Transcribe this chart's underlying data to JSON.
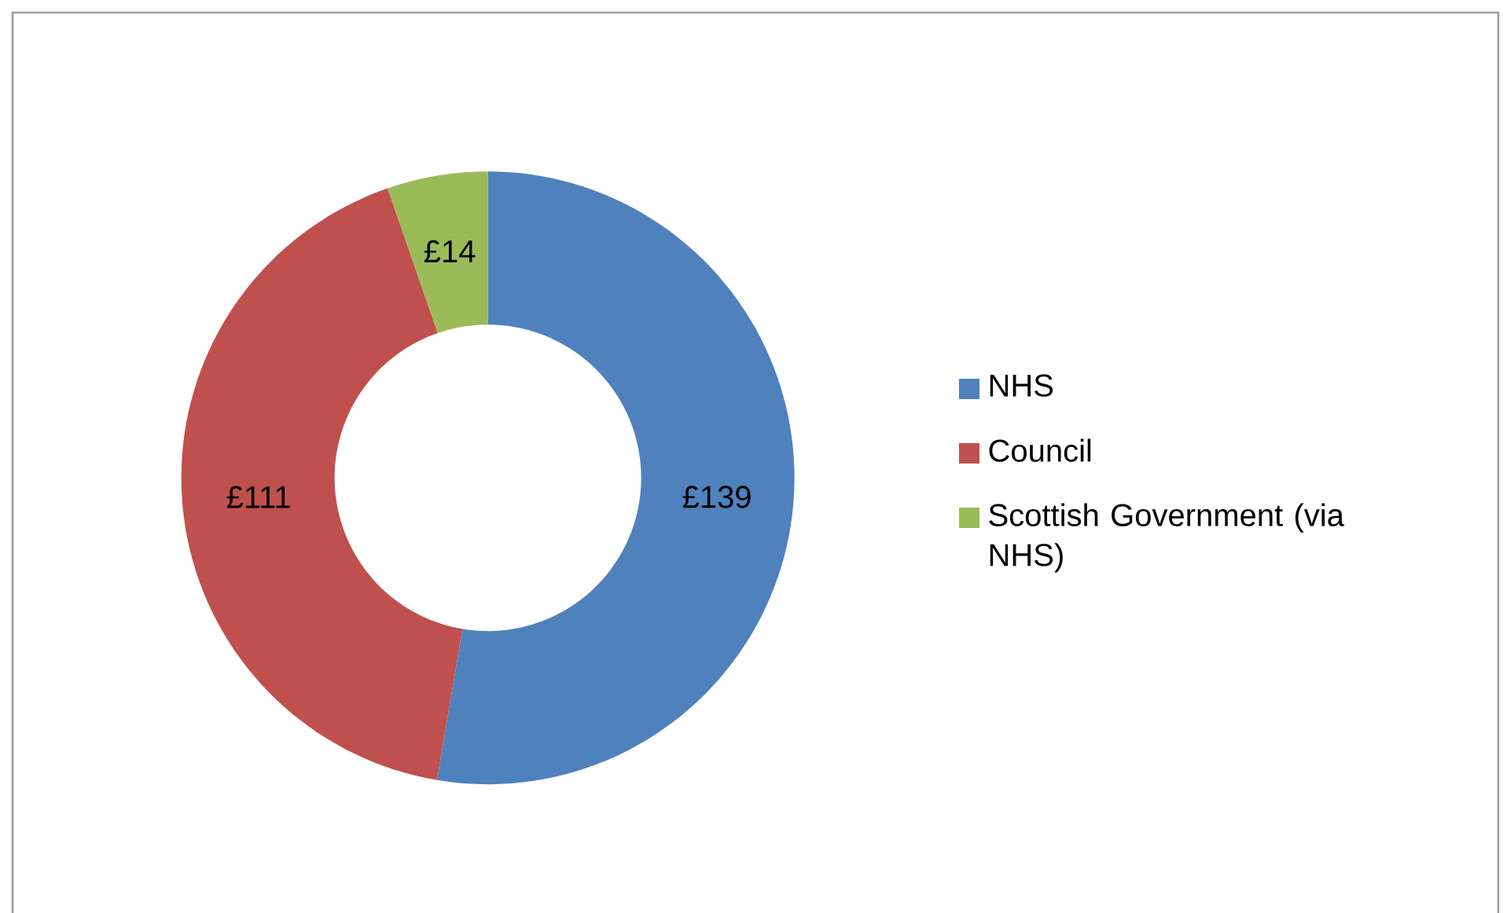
{
  "chart_data": {
    "type": "donut",
    "categories": [
      "NHS",
      "Council",
      "Scottish Government (via NHS)"
    ],
    "values": [
      139,
      111,
      14
    ],
    "colors": [
      "#4f81bd",
      "#c0504d",
      "#9bbb59"
    ],
    "value_labels": [
      "£139",
      "£111",
      "£14"
    ],
    "legend": "right"
  }
}
